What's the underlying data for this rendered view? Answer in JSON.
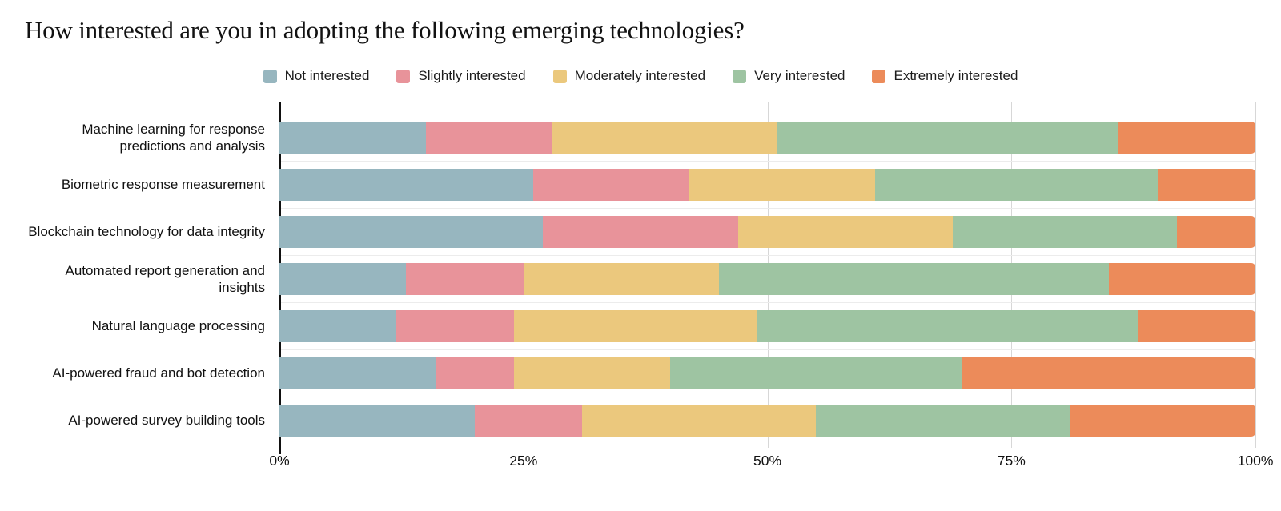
{
  "title": "How interested are you in adopting the following emerging technologies?",
  "chart_data": {
    "type": "bar",
    "stacked": true,
    "orientation": "horizontal",
    "unit": "percent",
    "title": "How interested are you in adopting the following emerging technologies?",
    "legend_position": "top",
    "grid": "vertical",
    "xlim": [
      0,
      100
    ],
    "x_ticks": [
      {
        "value": 0,
        "label": "0%"
      },
      {
        "value": 25,
        "label": "25%"
      },
      {
        "value": 50,
        "label": "50%"
      },
      {
        "value": 75,
        "label": "75%"
      },
      {
        "value": 100,
        "label": "100%"
      }
    ],
    "categories": [
      "Machine learning for response predictions and analysis",
      "Biometric response measurement",
      "Blockchain technology for data integrity",
      "Automated report generation and insights",
      "Natural language processing",
      "AI-powered fraud and bot detection",
      "AI-powered survey building tools"
    ],
    "series": [
      {
        "name": "Not interested",
        "color": "#97b6bf",
        "values": [
          15,
          26,
          27,
          13,
          12,
          16,
          20
        ]
      },
      {
        "name": "Slightly interested",
        "color": "#e8939a",
        "values": [
          13,
          16,
          20,
          12,
          12,
          8,
          11
        ]
      },
      {
        "name": "Moderately interested",
        "color": "#ebc87d",
        "values": [
          23,
          19,
          22,
          20,
          25,
          16,
          24
        ]
      },
      {
        "name": "Very interested",
        "color": "#9ec4a2",
        "values": [
          35,
          29,
          23,
          40,
          39,
          30,
          26
        ]
      },
      {
        "name": "Extremely interested",
        "color": "#ec8b5a",
        "values": [
          14,
          10,
          8,
          15,
          12,
          30,
          19
        ]
      }
    ],
    "colors": {
      "axis": "#111111",
      "gridline": "#d7d7d7",
      "row_separator": "#ececec",
      "text": "#111111"
    }
  }
}
